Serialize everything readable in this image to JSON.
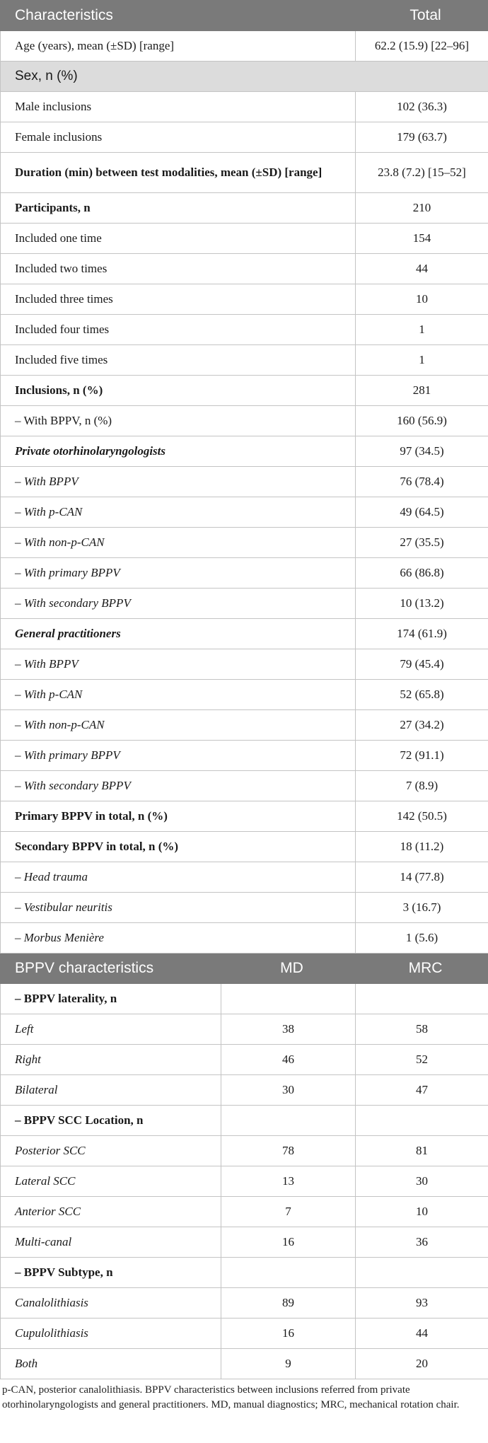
{
  "table1": {
    "headers": [
      "Characteristics",
      "Total"
    ],
    "rows": [
      {
        "type": "row",
        "label": "Age (years), mean (±SD) [range]",
        "value": "62.2 (15.9) [22–96]",
        "style": ""
      },
      {
        "type": "section",
        "label": "Sex, n (%)"
      },
      {
        "type": "row",
        "label": "Male inclusions",
        "value": "102 (36.3)",
        "style": ""
      },
      {
        "type": "row",
        "label": "Female inclusions",
        "value": "179 (63.7)",
        "style": ""
      },
      {
        "type": "row",
        "label": "Duration (min) between test modalities, mean (±SD) [range]",
        "value": "23.8 (7.2) [15–52]",
        "style": "b",
        "tall": true
      },
      {
        "type": "row",
        "label": "Participants, n",
        "value": "210",
        "style": "b"
      },
      {
        "type": "row",
        "label": "Included one time",
        "value": "154",
        "style": ""
      },
      {
        "type": "row",
        "label": "Included two times",
        "value": "44",
        "style": ""
      },
      {
        "type": "row",
        "label": "Included three times",
        "value": "10",
        "style": ""
      },
      {
        "type": "row",
        "label": "Included four times",
        "value": "1",
        "style": ""
      },
      {
        "type": "row",
        "label": "Included five times",
        "value": "1",
        "style": ""
      },
      {
        "type": "row",
        "label": "Inclusions, n (%)",
        "value": "281",
        "style": "b"
      },
      {
        "type": "row",
        "label": "– With BPPV, n (%)",
        "value": "160 (56.9)",
        "style": ""
      },
      {
        "type": "row",
        "label": "Private otorhinolaryngologists",
        "value": "97 (34.5)",
        "style": "bi"
      },
      {
        "type": "row",
        "label": "– With BPPV",
        "value": "76 (78.4)",
        "style": "i"
      },
      {
        "type": "row",
        "label": "– With p-CAN",
        "value": "49 (64.5)",
        "style": "i"
      },
      {
        "type": "row",
        "label": "– With non-p-CAN",
        "value": "27 (35.5)",
        "style": "i"
      },
      {
        "type": "row",
        "label": "– With primary BPPV",
        "value": "66 (86.8)",
        "style": "i"
      },
      {
        "type": "row",
        "label": "– With secondary BPPV",
        "value": "10 (13.2)",
        "style": "i"
      },
      {
        "type": "row",
        "label": "General practitioners",
        "value": "174 (61.9)",
        "style": "bi"
      },
      {
        "type": "row",
        "label": "– With BPPV",
        "value": "79 (45.4)",
        "style": "i"
      },
      {
        "type": "row",
        "label": "– With p-CAN",
        "value": "52 (65.8)",
        "style": "i"
      },
      {
        "type": "row",
        "label": "– With non-p-CAN",
        "value": "27 (34.2)",
        "style": "i"
      },
      {
        "type": "row",
        "label": "– With primary BPPV",
        "value": "72 (91.1)",
        "style": "i"
      },
      {
        "type": "row",
        "label": "– With secondary BPPV",
        "value": "7 (8.9)",
        "style": "i"
      },
      {
        "type": "row",
        "label": "Primary BPPV in total, n (%)",
        "value": "142 (50.5)",
        "style": "b"
      },
      {
        "type": "row",
        "label": "Secondary BPPV in total, n (%)",
        "value": "18 (11.2)",
        "style": "b"
      },
      {
        "type": "row",
        "label": "– Head trauma",
        "value": "14 (77.8)",
        "style": "i"
      },
      {
        "type": "row",
        "label": "– Vestibular neuritis",
        "value": "3 (16.7)",
        "style": "i"
      },
      {
        "type": "row",
        "label": "– Morbus Menière",
        "value": "1 (5.6)",
        "style": "i"
      }
    ]
  },
  "table2": {
    "headers": [
      "BPPV characteristics",
      "MD",
      "MRC"
    ],
    "rows": [
      {
        "label": "– BPPV laterality, n",
        "md": "",
        "mrc": "",
        "style": "b"
      },
      {
        "label": "Left",
        "md": "38",
        "mrc": "58",
        "style": "i"
      },
      {
        "label": "Right",
        "md": "46",
        "mrc": "52",
        "style": "i"
      },
      {
        "label": "Bilateral",
        "md": "30",
        "mrc": "47",
        "style": "i"
      },
      {
        "label": "– BPPV SCC Location, n",
        "md": "",
        "mrc": "",
        "style": "b"
      },
      {
        "label": "Posterior SCC",
        "md": "78",
        "mrc": "81",
        "style": "i"
      },
      {
        "label": "Lateral SCC",
        "md": "13",
        "mrc": "30",
        "style": "i"
      },
      {
        "label": "Anterior SCC",
        "md": "7",
        "mrc": "10",
        "style": "i"
      },
      {
        "label": "Multi-canal",
        "md": "16",
        "mrc": "36",
        "style": "i"
      },
      {
        "label": "– BPPV Subtype, n",
        "md": "",
        "mrc": "",
        "style": "b"
      },
      {
        "label": "Canalolithiasis",
        "md": "89",
        "mrc": "93",
        "style": "i"
      },
      {
        "label": "Cupulolithiasis",
        "md": "16",
        "mrc": "44",
        "style": "i"
      },
      {
        "label": "Both",
        "md": "9",
        "mrc": "20",
        "style": "i"
      }
    ]
  },
  "footnote": "p-CAN, posterior canalolithiasis. BPPV characteristics between inclusions referred from private otorhinolaryngologists and general practitioners. MD, manual diagnostics; MRC, mechanical rotation chair."
}
